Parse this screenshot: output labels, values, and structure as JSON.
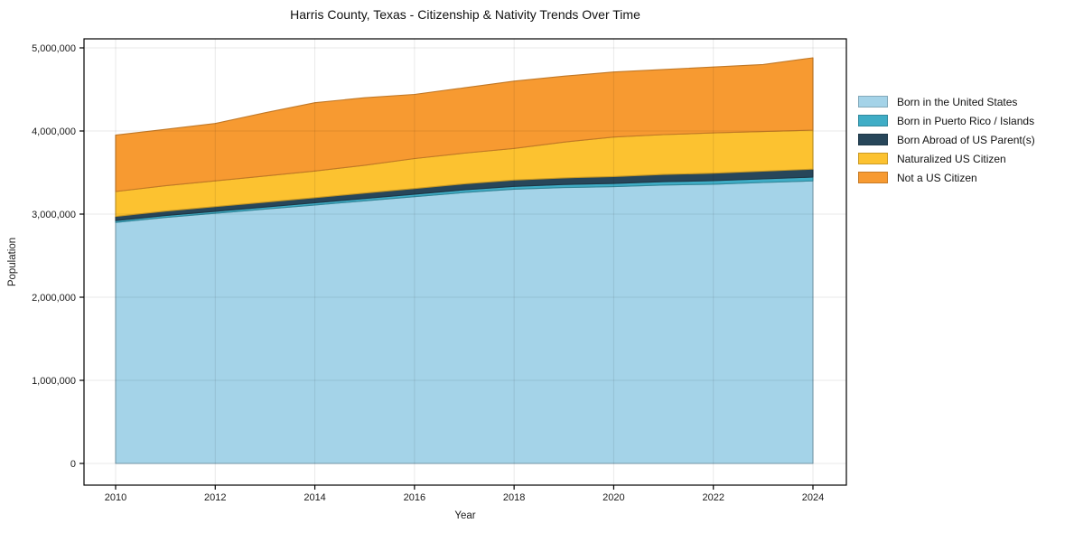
{
  "title": "Harris County, Texas - Citizenship & Nativity Trends Over Time",
  "chart_data": {
    "type": "area",
    "stacked": true,
    "title": "Harris County, Texas - Citizenship & Nativity Trends Over Time",
    "xlabel": "Year",
    "ylabel": "Population",
    "grid": true,
    "legend_position": "right of plot, frameless",
    "x": [
      2010,
      2011,
      2012,
      2013,
      2014,
      2015,
      2016,
      2017,
      2018,
      2019,
      2020,
      2021,
      2022,
      2023,
      2024
    ],
    "xlim": [
      2010,
      2024
    ],
    "ylim": [
      0,
      5000000
    ],
    "xticks": {
      "values": [
        2010,
        2012,
        2014,
        2016,
        2018,
        2020,
        2022,
        2024
      ],
      "labels": [
        "2010",
        "2012",
        "2014",
        "2016",
        "2018",
        "2020",
        "2022",
        "2024"
      ]
    },
    "yticks": {
      "values": [
        0,
        1000000,
        2000000,
        3000000,
        4000000,
        5000000
      ],
      "labels": [
        "0",
        "1,000,000",
        "2,000,000",
        "3,000,000",
        "4,000,000",
        "5,000,000"
      ]
    },
    "series": [
      {
        "name": "Born in the United States",
        "color": "#a4d3e8",
        "values": [
          2900000,
          2960000,
          3010000,
          3060000,
          3110000,
          3160000,
          3210000,
          3260000,
          3300000,
          3320000,
          3330000,
          3350000,
          3360000,
          3380000,
          3400000
        ]
      },
      {
        "name": "Born in Puerto Rico / Islands",
        "color": "#3fadc6",
        "values": [
          22000,
          23000,
          24000,
          25000,
          26000,
          28000,
          30000,
          32000,
          34000,
          36000,
          38000,
          40000,
          42000,
          44000,
          46000
        ]
      },
      {
        "name": "Born Abroad of US Parent(s)",
        "color": "#27465a",
        "values": [
          50000,
          53000,
          56000,
          59000,
          62000,
          65000,
          68000,
          72000,
          76000,
          80000,
          84000,
          87000,
          90000,
          92000,
          95000
        ]
      },
      {
        "name": "Naturalized US Citizen",
        "color": "#fcc230",
        "values": [
          300000,
          305000,
          310000,
          315000,
          320000,
          335000,
          360000,
          370000,
          380000,
          430000,
          475000,
          480000,
          485000,
          478000,
          470000
        ]
      },
      {
        "name": "Not a US Citizen",
        "color": "#f79a31",
        "values": [
          678000,
          679000,
          690000,
          761000,
          822000,
          812000,
          772000,
          786000,
          810000,
          794000,
          783000,
          783000,
          793000,
          806000,
          869000
        ]
      }
    ],
    "totals_by_year": [
      3950000,
      4020000,
      4090000,
      4220000,
      4340000,
      4400000,
      4440000,
      4520000,
      4600000,
      4660000,
      4710000,
      4740000,
      4770000,
      4800000,
      4880000
    ]
  },
  "colors": {
    "background": "#ffffff",
    "frame": "#000000",
    "gridline": "#e7e7e7",
    "text": "#1a1a1a"
  }
}
